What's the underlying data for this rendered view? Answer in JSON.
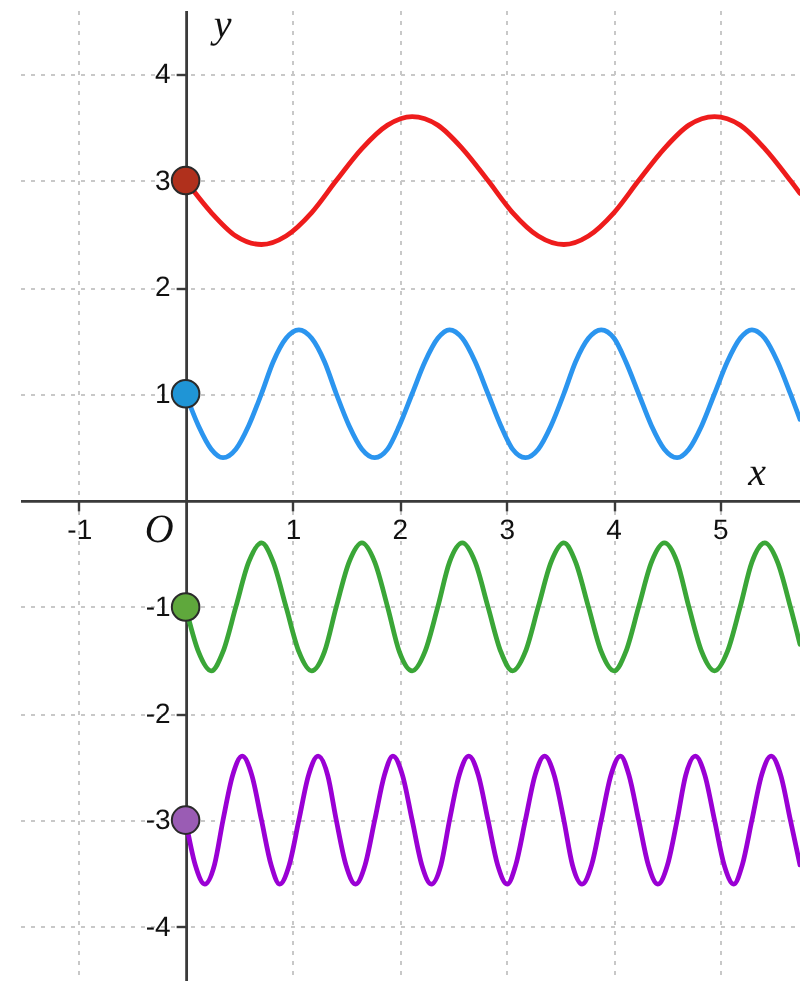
{
  "chart_data": {
    "type": "line",
    "xlabel": "x",
    "ylabel": "y",
    "annotations": [
      "O"
    ],
    "xlim": [
      -1.55,
      5.75
    ],
    "ylim": [
      -4.5,
      4.6
    ],
    "xticks": [
      -1,
      1,
      2,
      3,
      4,
      5
    ],
    "yticks": [
      -4,
      -3,
      -2,
      -1,
      1,
      2,
      3,
      4
    ],
    "grid": true,
    "series": [
      {
        "color": "#ee1c1c",
        "x": [
          0,
          0.24,
          0.47,
          0.71,
          0.94,
          1.18,
          1.41,
          1.65,
          1.89,
          2.12,
          2.36,
          2.59,
          2.83,
          3.06,
          3.3,
          3.54,
          3.77,
          4.01,
          4.24,
          4.48,
          4.71,
          4.95,
          5.19,
          5.42,
          5.66,
          5.75
        ],
        "values": [
          3,
          2.7,
          2.48,
          2.4,
          2.48,
          2.7,
          3,
          3.3,
          3.52,
          3.6,
          3.52,
          3.3,
          3,
          2.7,
          2.48,
          2.4,
          2.48,
          2.7,
          3,
          3.3,
          3.52,
          3.6,
          3.52,
          3.3,
          3,
          2.88
        ]
      },
      {
        "color": "#2b95ef",
        "x": [
          0,
          0.12,
          0.24,
          0.35,
          0.47,
          0.59,
          0.71,
          0.82,
          0.94,
          1.06,
          1.18,
          1.3,
          1.41,
          1.53,
          1.65,
          1.77,
          1.89,
          2,
          2.12,
          2.24,
          2.36,
          2.47,
          2.59,
          2.71,
          2.83,
          2.95,
          3.06,
          3.18,
          3.3,
          3.42,
          3.54,
          3.65,
          3.77,
          3.89,
          4.01,
          4.12,
          4.24,
          4.36,
          4.48,
          4.6,
          4.71,
          4.83,
          4.95,
          5.07,
          5.19,
          5.3,
          5.42,
          5.54,
          5.66,
          5.75
        ],
        "values": [
          1,
          0.7,
          0.48,
          0.4,
          0.48,
          0.7,
          1,
          1.3,
          1.52,
          1.6,
          1.52,
          1.3,
          1,
          0.7,
          0.48,
          0.4,
          0.48,
          0.7,
          1,
          1.3,
          1.52,
          1.6,
          1.52,
          1.3,
          1,
          0.7,
          0.48,
          0.4,
          0.48,
          0.7,
          1,
          1.3,
          1.52,
          1.6,
          1.52,
          1.3,
          1,
          0.7,
          0.48,
          0.4,
          0.48,
          0.7,
          1,
          1.3,
          1.52,
          1.6,
          1.52,
          1.3,
          1,
          0.76
        ]
      },
      {
        "color": "#3aa637",
        "x": [
          0,
          0.12,
          0.24,
          0.35,
          0.47,
          0.59,
          0.71,
          0.82,
          0.94,
          1.06,
          1.18,
          1.3,
          1.41,
          1.53,
          1.65,
          1.77,
          1.89,
          2,
          2.12,
          2.24,
          2.36,
          2.47,
          2.59,
          2.71,
          2.83,
          2.95,
          3.06,
          3.18,
          3.3,
          3.42,
          3.54,
          3.65,
          3.77,
          3.89,
          4.01,
          4.12,
          4.24,
          4.36,
          4.48,
          4.6,
          4.71,
          4.83,
          4.95,
          5.07,
          5.19,
          5.3,
          5.42,
          5.54,
          5.66,
          5.75
        ],
        "values": [
          -1,
          -1.42,
          -1.6,
          -1.42,
          -1,
          -0.58,
          -0.4,
          -0.58,
          -1,
          -1.42,
          -1.6,
          -1.42,
          -1,
          -0.58,
          -0.4,
          -0.58,
          -1,
          -1.42,
          -1.6,
          -1.42,
          -1,
          -0.58,
          -0.4,
          -0.58,
          -1,
          -1.42,
          -1.6,
          -1.42,
          -1,
          -0.58,
          -0.4,
          -0.58,
          -1,
          -1.42,
          -1.6,
          -1.42,
          -1,
          -0.58,
          -0.4,
          -0.58,
          -1,
          -1.42,
          -1.6,
          -1.42,
          -1,
          -0.58,
          -0.4,
          -0.58,
          -1,
          -1.35
        ]
      },
      {
        "color": "#9a00d4",
        "x": [
          0,
          0.09,
          0.18,
          0.27,
          0.35,
          0.44,
          0.53,
          0.62,
          0.71,
          0.8,
          0.88,
          0.97,
          1.06,
          1.15,
          1.24,
          1.33,
          1.41,
          1.5,
          1.59,
          1.68,
          1.77,
          1.86,
          1.94,
          2.03,
          2.12,
          2.21,
          2.3,
          2.39,
          2.47,
          2.56,
          2.65,
          2.74,
          2.83,
          2.92,
          3.01,
          3.09,
          3.18,
          3.27,
          3.36,
          3.45,
          3.54,
          3.62,
          3.71,
          3.8,
          3.89,
          3.98,
          4.07,
          4.15,
          4.24,
          4.33,
          4.42,
          4.51,
          4.6,
          4.68,
          4.77,
          4.86,
          4.95,
          5.04,
          5.13,
          5.21,
          5.3,
          5.39,
          5.48,
          5.57,
          5.66,
          5.75
        ],
        "values": [
          -3,
          -3.42,
          -3.6,
          -3.42,
          -3,
          -2.58,
          -2.4,
          -2.58,
          -3,
          -3.42,
          -3.6,
          -3.42,
          -3,
          -2.58,
          -2.4,
          -2.58,
          -3,
          -3.42,
          -3.6,
          -3.42,
          -3,
          -2.58,
          -2.4,
          -2.58,
          -3,
          -3.42,
          -3.6,
          -3.42,
          -3,
          -2.58,
          -2.4,
          -2.58,
          -3,
          -3.42,
          -3.6,
          -3.42,
          -3,
          -2.58,
          -2.4,
          -2.58,
          -3,
          -3.42,
          -3.6,
          -3.42,
          -3,
          -2.58,
          -2.4,
          -2.58,
          -3,
          -3.42,
          -3.6,
          -3.42,
          -3,
          -2.58,
          -2.4,
          -2.58,
          -3,
          -3.42,
          -3.6,
          -3.42,
          -3,
          -2.58,
          -2.4,
          -2.58,
          -3,
          -3.42
        ]
      },
      {
        "type": "scatter",
        "marker": "circle",
        "x": [
          0,
          0,
          0,
          0
        ],
        "values": [
          3,
          1,
          -1,
          -3
        ],
        "colors": [
          "#b0301c",
          "#1f95d6",
          "#5fa83c",
          "#9a5cb4"
        ]
      }
    ]
  }
}
